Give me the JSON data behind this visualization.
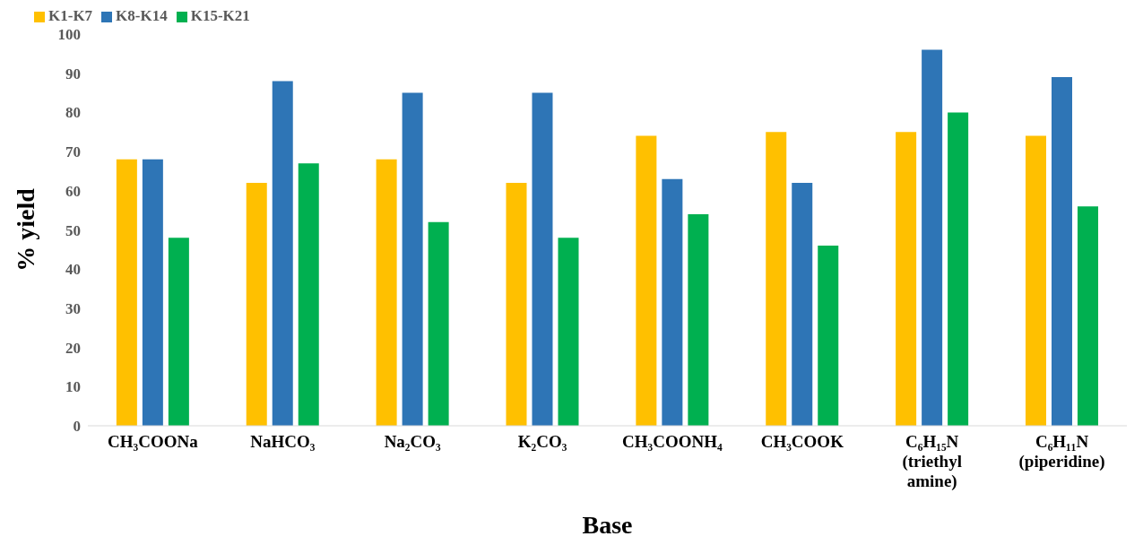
{
  "chart_data": {
    "type": "bar",
    "xlabel": "Base",
    "ylabel": "%  yield",
    "categories": [
      "CH₃COONa",
      "NaHCO₃",
      "Na₂CO₃",
      "K₂CO₃",
      "CH₃COONH₄",
      "CH₃COOK",
      "C₆H₁₅N (triethyl amine)",
      "C₆H₁₁N (piperidine)"
    ],
    "series": [
      {
        "name": "K1-K7",
        "color": "#ffc000",
        "values": [
          68,
          62,
          68,
          62,
          74,
          75,
          75,
          74
        ]
      },
      {
        "name": "K8-K14",
        "color": "#2e75b6",
        "values": [
          68,
          88,
          85,
          85,
          63,
          62,
          96,
          89
        ]
      },
      {
        "name": "K15-K21",
        "color": "#00b050",
        "values": [
          48,
          67,
          52,
          48,
          54,
          46,
          80,
          56
        ]
      }
    ],
    "ylim": [
      0,
      100
    ],
    "yticks": [
      0,
      10,
      20,
      30,
      40,
      50,
      60,
      70,
      80,
      90,
      100
    ],
    "grid": false,
    "legend": "top left"
  }
}
